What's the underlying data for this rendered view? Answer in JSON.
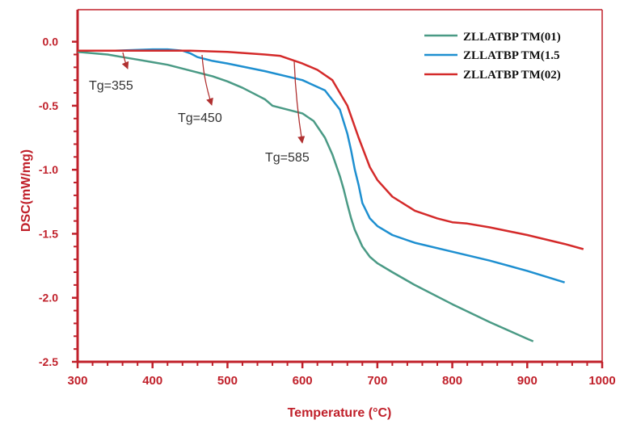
{
  "chart_data": {
    "type": "line",
    "xlabel": "Temperature (°C)",
    "ylabel": "DSC(mW/mg)",
    "xlim": [
      300,
      1000
    ],
    "ylim": [
      -2.5,
      0.25
    ],
    "xticks": [
      300,
      400,
      500,
      600,
      700,
      800,
      900,
      1000
    ],
    "yticks": [
      0.0,
      -0.5,
      -1.0,
      -1.5,
      -2.0,
      -2.5
    ],
    "xtick_labels": [
      "300",
      "400",
      "500",
      "600",
      "700",
      "800",
      "900",
      "1000"
    ],
    "ytick_labels": [
      "0.0",
      "-0.5",
      "-1.0",
      "-1.5",
      "-2.0",
      "-2.5"
    ],
    "grid": false,
    "legend_position": "top-right",
    "series": [
      {
        "name": "ZLLATBP TM(01)",
        "color": "#4a9a85",
        "x": [
          300,
          320,
          340,
          360,
          380,
          400,
          420,
          440,
          460,
          480,
          500,
          520,
          540,
          550,
          560,
          580,
          600,
          615,
          630,
          640,
          650,
          655,
          660,
          665,
          670,
          680,
          690,
          700,
          720,
          750,
          800,
          850,
          900,
          908
        ],
        "y": [
          -0.08,
          -0.09,
          -0.1,
          -0.12,
          -0.14,
          -0.16,
          -0.18,
          -0.21,
          -0.24,
          -0.27,
          -0.31,
          -0.36,
          -0.42,
          -0.45,
          -0.5,
          -0.53,
          -0.56,
          -0.62,
          -0.75,
          -0.88,
          -1.05,
          -1.15,
          -1.27,
          -1.38,
          -1.47,
          -1.6,
          -1.68,
          -1.73,
          -1.8,
          -1.9,
          -2.05,
          -2.19,
          -2.32,
          -2.34
        ]
      },
      {
        "name": "ZLLATBP TM(1.5",
        "color": "#1e8fd0",
        "x": [
          300,
          350,
          400,
          420,
          440,
          450,
          460,
          480,
          500,
          550,
          600,
          630,
          650,
          660,
          665,
          670,
          675,
          680,
          690,
          700,
          720,
          750,
          800,
          850,
          900,
          950
        ],
        "y": [
          -0.07,
          -0.07,
          -0.06,
          -0.06,
          -0.07,
          -0.09,
          -0.12,
          -0.15,
          -0.17,
          -0.23,
          -0.3,
          -0.38,
          -0.53,
          -0.72,
          -0.85,
          -1.0,
          -1.12,
          -1.26,
          -1.38,
          -1.44,
          -1.51,
          -1.57,
          -1.64,
          -1.71,
          -1.79,
          -1.88
        ]
      },
      {
        "name": "ZLLATBP TM(02)",
        "color": "#d42a2a",
        "x": [
          300,
          350,
          400,
          450,
          500,
          550,
          570,
          585,
          600,
          620,
          640,
          660,
          675,
          690,
          700,
          720,
          750,
          780,
          800,
          820,
          850,
          900,
          950,
          975
        ],
        "y": [
          -0.07,
          -0.07,
          -0.07,
          -0.07,
          -0.08,
          -0.1,
          -0.11,
          -0.14,
          -0.17,
          -0.22,
          -0.3,
          -0.5,
          -0.75,
          -0.98,
          -1.08,
          -1.21,
          -1.32,
          -1.38,
          -1.41,
          -1.42,
          -1.45,
          -1.51,
          -1.58,
          -1.62
        ]
      }
    ],
    "annotations": [
      {
        "text": "Tg=355",
        "target_x": 355,
        "target_y": -0.14
      },
      {
        "text": "Tg=450",
        "target_x": 465,
        "target_y": -0.48
      },
      {
        "text": "Tg=585",
        "target_x": 585,
        "target_y": -0.83
      }
    ]
  },
  "colors": {
    "axis": "#c0202a",
    "arrow": "#b03030",
    "text": "#333333"
  }
}
